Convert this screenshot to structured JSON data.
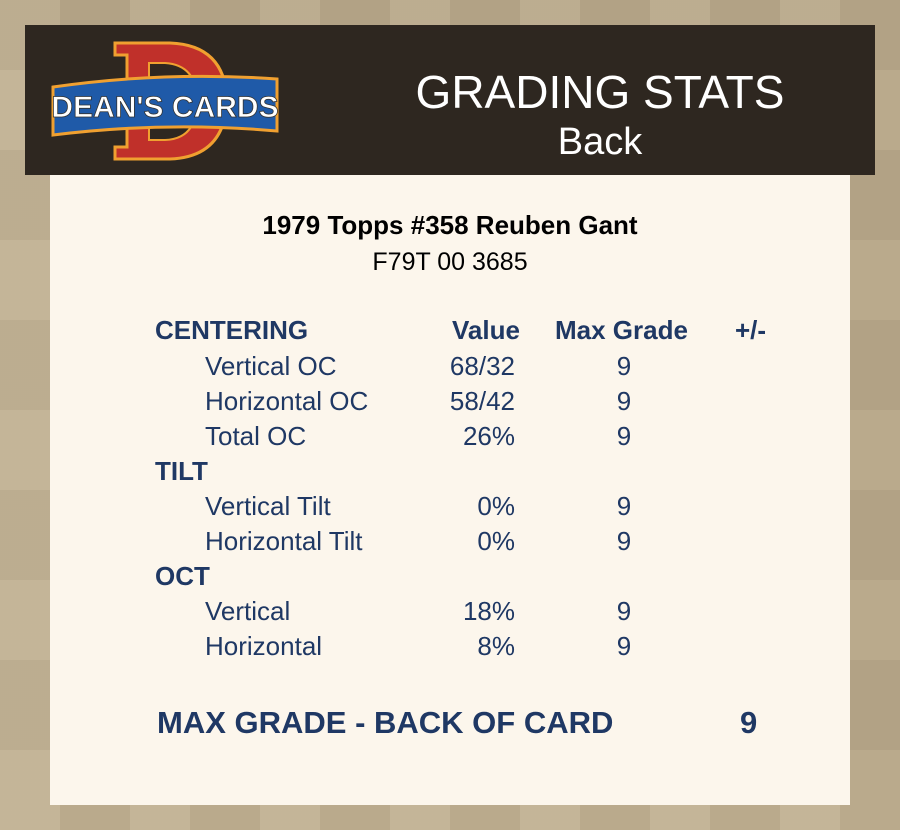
{
  "header": {
    "logo_text": "DEAN'S CARDS",
    "title": "GRADING STATS",
    "subtitle": "Back"
  },
  "card": {
    "name": "1979 Topps #358 Reuben Gant",
    "cert": "F79T 00 3685"
  },
  "columns": {
    "value": "Value",
    "max_grade": "Max Grade",
    "plus_minus": "+/-"
  },
  "sections": [
    {
      "title": "CENTERING",
      "rows": [
        {
          "label": "Vertical OC",
          "value": "68/32",
          "max": "9"
        },
        {
          "label": "Horizontal OC",
          "value": "58/42",
          "max": "9"
        },
        {
          "label": "Total OC",
          "value": "26%",
          "max": "9"
        }
      ]
    },
    {
      "title": "TILT",
      "rows": [
        {
          "label": "Vertical Tilt",
          "value": "0%",
          "max": "9"
        },
        {
          "label": "Horizontal Tilt",
          "value": "0%",
          "max": "9"
        }
      ]
    },
    {
      "title": "OCT",
      "rows": [
        {
          "label": "Vertical",
          "value": "18%",
          "max": "9"
        },
        {
          "label": "Horizontal",
          "value": "8%",
          "max": "9"
        }
      ]
    }
  ],
  "summary": {
    "label": "MAX GRADE - BACK OF CARD",
    "value": "9"
  },
  "colors": {
    "text": "#1f3864",
    "header_bg": "#2e2720",
    "card_bg": "#fcf6ec"
  }
}
